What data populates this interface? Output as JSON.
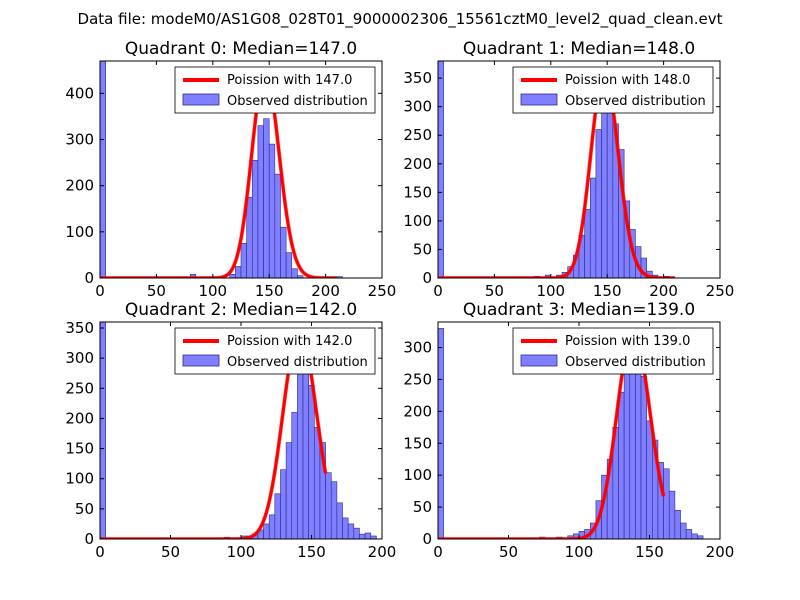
{
  "figure_title": "Data file: modeM0/AS1G08_028T01_9000002306_15561cztM0_level2_quad_clean.evt",
  "colors": {
    "bar_fill": "#7f7fff",
    "bar_stroke": "#2b2b8f",
    "curve": "#ff0000",
    "axis": "#000000"
  },
  "chart_data": [
    {
      "type": "bar",
      "title": "Quadrant 0: Median=147.0",
      "xlim": [
        0,
        250
      ],
      "ylim": [
        0,
        470
      ],
      "xticks": [
        "0",
        "50",
        "100",
        "150",
        "200",
        "250"
      ],
      "xtick_values": [
        0,
        50,
        100,
        150,
        200,
        250
      ],
      "yticks": [
        "0",
        "100",
        "200",
        "300",
        "400"
      ],
      "ytick_values": [
        0,
        100,
        200,
        300,
        400
      ],
      "legend": [
        "Poission with 147.0",
        "Observed distribution"
      ],
      "hist_bin_width": 5,
      "hist": [
        [
          0,
          470
        ],
        [
          80,
          8
        ],
        [
          115,
          8
        ],
        [
          120,
          25
        ],
        [
          125,
          75
        ],
        [
          130,
          175
        ],
        [
          135,
          255
        ],
        [
          140,
          330
        ],
        [
          145,
          345
        ],
        [
          150,
          290
        ],
        [
          155,
          225
        ],
        [
          160,
          110
        ],
        [
          165,
          55
        ],
        [
          170,
          20
        ],
        [
          175,
          5
        ],
        [
          210,
          3
        ]
      ],
      "poisson_mean": 147.0,
      "poisson_peak": 445
    },
    {
      "type": "bar",
      "title": "Quadrant 1: Median=148.0",
      "xlim": [
        0,
        250
      ],
      "ylim": [
        0,
        380
      ],
      "xticks": [
        "0",
        "50",
        "100",
        "150",
        "200",
        "250"
      ],
      "xtick_values": [
        0,
        50,
        100,
        150,
        200,
        250
      ],
      "yticks": [
        "0",
        "50",
        "100",
        "150",
        "200",
        "250",
        "300",
        "350"
      ],
      "ytick_values": [
        0,
        50,
        100,
        150,
        200,
        250,
        300,
        350
      ],
      "legend": [
        "Poission with 148.0",
        "Observed distribution"
      ],
      "hist_bin_width": 5,
      "hist": [
        [
          0,
          380
        ],
        [
          85,
          3
        ],
        [
          95,
          5
        ],
        [
          105,
          5
        ],
        [
          110,
          10
        ],
        [
          115,
          20
        ],
        [
          120,
          40
        ],
        [
          125,
          75
        ],
        [
          130,
          120
        ],
        [
          135,
          175
        ],
        [
          140,
          260
        ],
        [
          145,
          310
        ],
        [
          150,
          320
        ],
        [
          155,
          270
        ],
        [
          160,
          225
        ],
        [
          165,
          135
        ],
        [
          170,
          85
        ],
        [
          175,
          55
        ],
        [
          180,
          35
        ],
        [
          185,
          12
        ],
        [
          190,
          5
        ],
        [
          200,
          3
        ]
      ],
      "poisson_mean": 148.0,
      "poisson_peak": 360
    },
    {
      "type": "bar",
      "title": "Quadrant 2: Median=142.0",
      "xlim": [
        0,
        200
      ],
      "ylim": [
        0,
        360
      ],
      "xticks": [
        "0",
        "50",
        "100",
        "150",
        "200"
      ],
      "xtick_values": [
        0,
        50,
        100,
        150,
        200
      ],
      "yticks": [
        "0",
        "50",
        "100",
        "150",
        "200",
        "250",
        "300",
        "350"
      ],
      "ytick_values": [
        0,
        50,
        100,
        150,
        200,
        250,
        300,
        350
      ],
      "legend": [
        "Poission with 142.0",
        "Observed distribution"
      ],
      "hist_bin_width": 4,
      "hist": [
        [
          0,
          360
        ],
        [
          88,
          3
        ],
        [
          100,
          5
        ],
        [
          104,
          5
        ],
        [
          108,
          8
        ],
        [
          112,
          15
        ],
        [
          116,
          25
        ],
        [
          120,
          40
        ],
        [
          124,
          75
        ],
        [
          128,
          115
        ],
        [
          132,
          160
        ],
        [
          136,
          210
        ],
        [
          140,
          305
        ],
        [
          144,
          290
        ],
        [
          148,
          255
        ],
        [
          152,
          185
        ],
        [
          156,
          160
        ],
        [
          160,
          110
        ],
        [
          164,
          95
        ],
        [
          168,
          60
        ],
        [
          172,
          35
        ],
        [
          176,
          25
        ],
        [
          180,
          18
        ],
        [
          184,
          8
        ],
        [
          188,
          10
        ],
        [
          192,
          5
        ]
      ],
      "poisson_mean": 142.0,
      "poisson_peak": 345
    },
    {
      "type": "bar",
      "title": "Quadrant 3: Median=139.0",
      "xlim": [
        0,
        200
      ],
      "ylim": [
        0,
        340
      ],
      "xticks": [
        "0",
        "50",
        "100",
        "150",
        "200"
      ],
      "xtick_values": [
        0,
        50,
        100,
        150,
        200
      ],
      "yticks": [
        "0",
        "50",
        "100",
        "150",
        "200",
        "250",
        "300"
      ],
      "ytick_values": [
        0,
        50,
        100,
        150,
        200,
        250,
        300
      ],
      "legend": [
        "Poission with 139.0",
        "Observed distribution"
      ],
      "hist_bin_width": 4,
      "hist": [
        [
          0,
          330
        ],
        [
          72,
          3
        ],
        [
          84,
          3
        ],
        [
          92,
          5
        ],
        [
          96,
          8
        ],
        [
          100,
          12
        ],
        [
          104,
          15
        ],
        [
          108,
          25
        ],
        [
          112,
          60
        ],
        [
          116,
          100
        ],
        [
          120,
          125
        ],
        [
          124,
          175
        ],
        [
          128,
          230
        ],
        [
          132,
          300
        ],
        [
          136,
          310
        ],
        [
          140,
          300
        ],
        [
          144,
          255
        ],
        [
          148,
          185
        ],
        [
          152,
          155
        ],
        [
          156,
          120
        ],
        [
          160,
          110
        ],
        [
          164,
          75
        ],
        [
          168,
          45
        ],
        [
          172,
          25
        ],
        [
          176,
          15
        ],
        [
          180,
          8
        ],
        [
          184,
          5
        ]
      ],
      "poisson_mean": 139.0,
      "poisson_peak": 325
    }
  ]
}
